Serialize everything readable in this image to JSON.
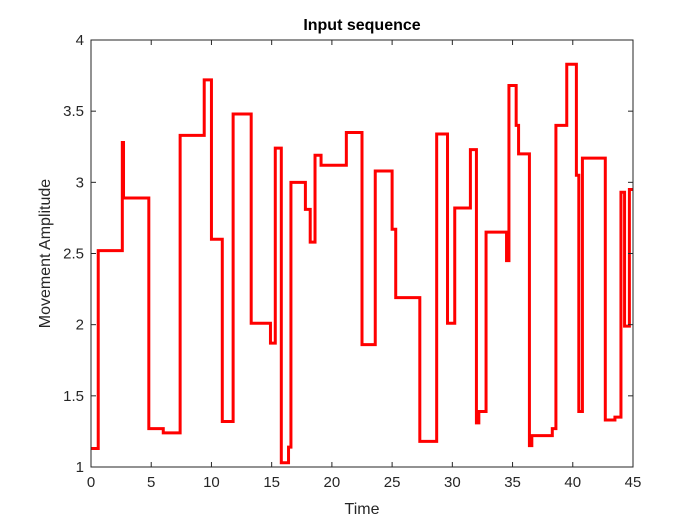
{
  "chart_data": {
    "type": "line",
    "step": true,
    "title": "Input sequence",
    "xlabel": "Time",
    "ylabel": "Movement Amplitude",
    "xlim": [
      0,
      45
    ],
    "ylim": [
      1,
      4
    ],
    "xticks": [
      0,
      5,
      10,
      15,
      20,
      25,
      30,
      35,
      40,
      45
    ],
    "yticks": [
      1,
      1.5,
      2,
      2.5,
      3,
      3.5,
      4
    ],
    "xtick_labels": [
      "0",
      "5",
      "10",
      "15",
      "20",
      "25",
      "30",
      "35",
      "40",
      "45"
    ],
    "ytick_labels": [
      "1",
      "1.5",
      "2",
      "2.5",
      "3",
      "3.5",
      "4"
    ],
    "grid": false,
    "box": true,
    "series_color": "#ff0000",
    "series": [
      {
        "x": [
          0,
          0.6,
          2.6,
          2.7,
          4.8,
          6.0,
          7.4,
          9.4,
          10.0,
          10.9,
          11.8,
          13.3,
          14.9,
          15.3,
          15.8,
          16.4,
          16.6,
          17.8,
          18.2,
          18.6,
          19.1,
          21.2,
          22.5,
          23.6,
          25.0,
          25.3,
          25.6,
          27.3,
          28.7,
          29.6,
          30.2,
          31.5,
          32.0,
          32.2,
          32.8,
          34.5,
          34.7,
          35.3,
          35.5,
          36.4,
          36.6,
          38.3,
          38.6,
          39.5,
          40.3,
          40.5,
          40.8,
          42.7,
          43.5,
          44.0,
          44.3,
          44.7
        ],
        "y": [
          1.13,
          2.52,
          3.28,
          2.89,
          1.27,
          1.24,
          3.33,
          3.72,
          2.6,
          1.32,
          3.48,
          2.01,
          1.87,
          3.24,
          1.03,
          1.14,
          3.0,
          2.81,
          2.58,
          3.19,
          3.12,
          3.35,
          1.86,
          3.08,
          2.67,
          2.19,
          2.19,
          1.18,
          3.34,
          2.01,
          2.82,
          3.23,
          1.31,
          1.39,
          2.65,
          2.45,
          3.68,
          3.4,
          3.2,
          1.15,
          1.22,
          1.27,
          3.4,
          3.83,
          3.05,
          1.39,
          3.17,
          1.33,
          1.35,
          2.93,
          1.99,
          2.95
        ],
        "x_end": 45
      }
    ]
  }
}
